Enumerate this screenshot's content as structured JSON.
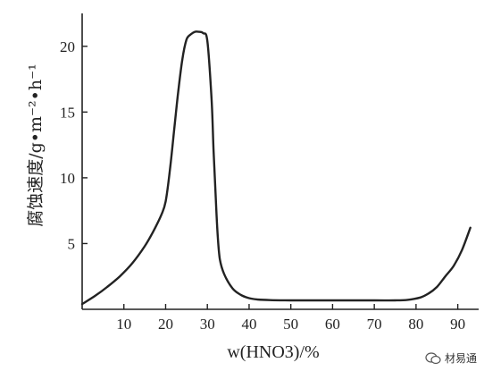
{
  "chart_data": {
    "type": "line",
    "xlabel": "w(HNO3)/%",
    "ylabel": "腐蚀速度/g•m⁻²•h⁻¹",
    "xlim": [
      0,
      95
    ],
    "ylim": [
      0,
      22.5
    ],
    "x_ticks": [
      10,
      20,
      30,
      40,
      50,
      60,
      70,
      80,
      90
    ],
    "y_ticks": [
      5,
      10,
      15,
      20
    ],
    "grid": false,
    "series": [
      {
        "x": [
          0,
          3,
          6,
          9,
          12,
          15,
          17,
          19,
          20,
          21,
          22,
          23,
          24,
          25,
          26,
          27,
          28,
          29,
          30,
          31,
          31.5,
          32,
          32.5,
          33,
          34,
          36,
          38,
          40,
          42,
          45,
          50,
          60,
          70,
          75,
          78,
          81,
          83,
          85,
          87,
          89,
          91,
          93
        ],
        "y": [
          0.4,
          1.0,
          1.7,
          2.5,
          3.5,
          4.8,
          5.9,
          7.2,
          8.2,
          10.5,
          13.5,
          16.5,
          19.0,
          20.5,
          20.9,
          21.1,
          21.1,
          21.0,
          20.4,
          16.0,
          12.0,
          8.5,
          5.5,
          3.8,
          2.7,
          1.6,
          1.1,
          0.85,
          0.75,
          0.7,
          0.68,
          0.68,
          0.68,
          0.68,
          0.72,
          0.9,
          1.2,
          1.7,
          2.5,
          3.3,
          4.5,
          6.2
        ]
      }
    ]
  },
  "watermark": {
    "text": "材易通"
  },
  "colors": {
    "line": "#222222",
    "axis": "#222222"
  }
}
